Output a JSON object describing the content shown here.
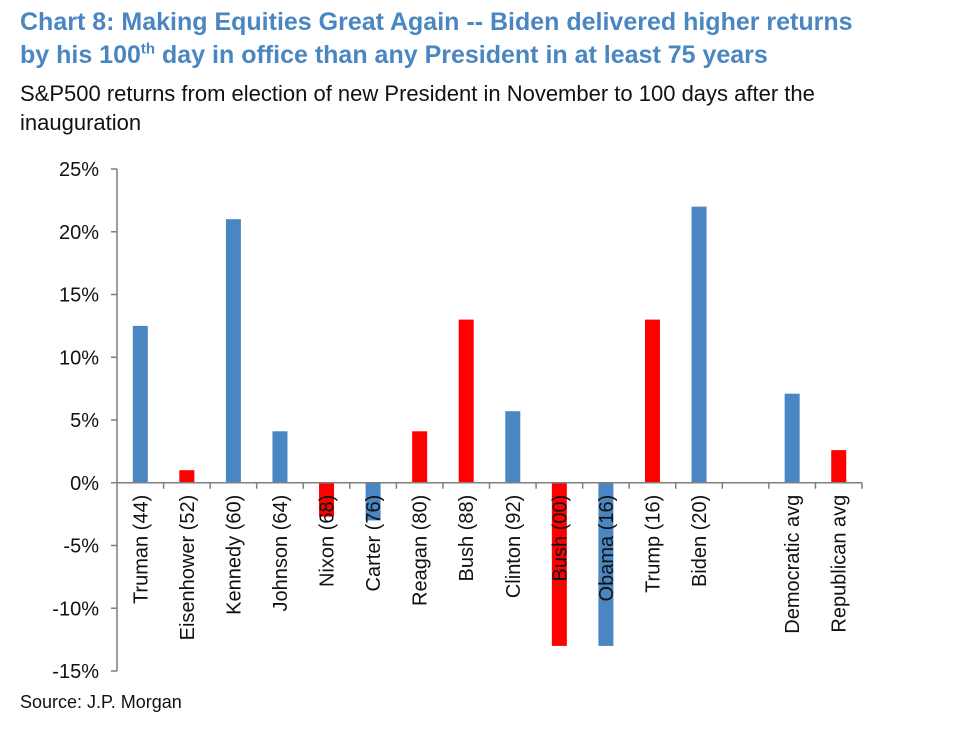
{
  "title": {
    "part1": "Chart 8: Making Equities Great Again -- Biden delivered higher returns",
    "part2a": "by his 100",
    "sup": "th",
    "part2b": " day in office than any President in at least 75 years"
  },
  "subtitle": "S&P500 returns from election of new President in November to 100 days after the inauguration",
  "source": "Source: J.P. Morgan",
  "colors": {
    "democrat": "#4a86c1",
    "republican": "#ff0000",
    "axis": "#7f7f7f",
    "text": "#111111"
  },
  "chart_data": {
    "type": "bar",
    "ylim": [
      -15,
      25
    ],
    "ytick_values": [
      -15,
      -10,
      -5,
      0,
      5,
      10,
      15,
      20,
      25
    ],
    "ytick_labels": [
      "-15%",
      "-10%",
      "-5%",
      "0%",
      "5%",
      "10%",
      "15%",
      "20%",
      "25%"
    ],
    "grid": false,
    "legend": "none",
    "categories": [
      "Truman (44)",
      "Eisenhower (52)",
      "Kennedy (60)",
      "Johnson (64)",
      "Nixon (68)",
      "Carter (76)",
      "Reagan (80)",
      "Bush (88)",
      "Clinton (92)",
      "Bush (00)",
      "Obama (16)",
      "Trump (16)",
      "Biden (20)",
      "",
      "Democratic avg",
      "Republican avg"
    ],
    "values": [
      12.5,
      1.0,
      21.0,
      4.1,
      -2.7,
      -3.0,
      4.1,
      13.0,
      5.7,
      -13.0,
      -13.0,
      13.0,
      22.0,
      null,
      7.1,
      2.6
    ],
    "party": [
      "D",
      "R",
      "D",
      "D",
      "R",
      "D",
      "R",
      "R",
      "D",
      "R",
      "D",
      "R",
      "D",
      "",
      "D",
      "R"
    ]
  }
}
